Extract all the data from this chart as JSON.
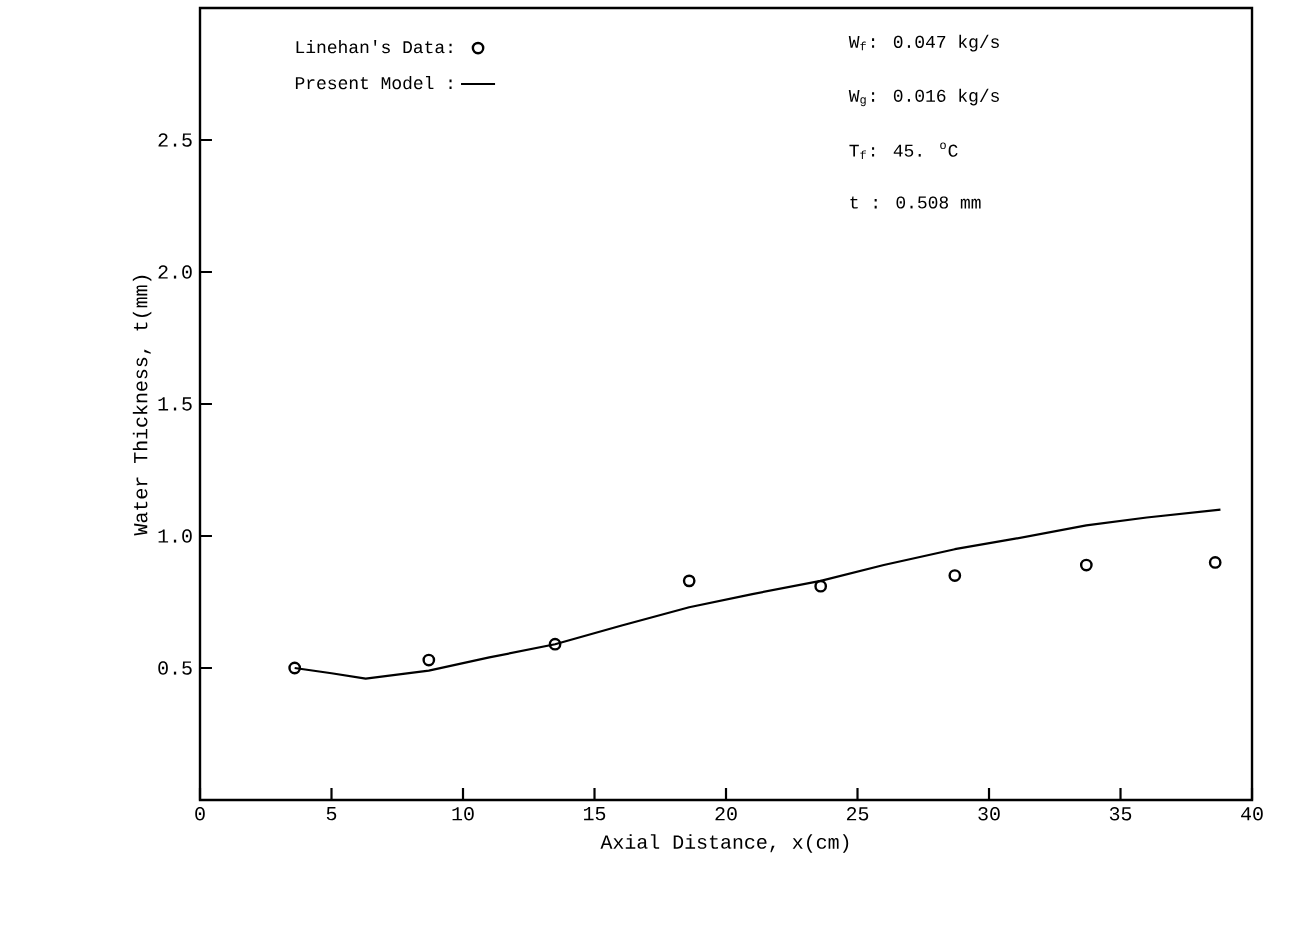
{
  "chart_data": {
    "type": "line",
    "xlabel": "Axial Distance, x(cm)",
    "ylabel": "Water Thickness, t(mm)",
    "xlim": [
      0,
      40
    ],
    "xticks": [
      0,
      5,
      10,
      15,
      20,
      25,
      30,
      35,
      40
    ],
    "ylim": [
      0,
      3
    ],
    "yticks": [
      0.5,
      {
        "value": 1,
        "label": "1.0"
      },
      1.5,
      {
        "value": 2,
        "label": "2.0"
      },
      2.5
    ],
    "legend": "top left",
    "grid": false,
    "series": [
      {
        "name": "Linehan's Data:",
        "type": "scatter",
        "marker": "circle",
        "color": "#000000",
        "x": [
          3.6,
          8.7,
          13.5,
          18.6,
          23.6,
          28.7,
          33.7,
          38.6
        ],
        "values": [
          0.5,
          0.53,
          0.59,
          0.83,
          0.81,
          0.85,
          0.89,
          0.9
        ]
      },
      {
        "name": "Present Model :",
        "line_style": "solid",
        "color": "#000000",
        "x": [
          3.6,
          5.0,
          6.3,
          8.7,
          11.0,
          13.5,
          16.0,
          18.6,
          21.0,
          23.6,
          26.0,
          28.7,
          31.0,
          33.7,
          36.0,
          38.8
        ],
        "values": [
          0.5,
          0.48,
          0.46,
          0.49,
          0.54,
          0.59,
          0.66,
          0.73,
          0.78,
          0.83,
          0.89,
          0.95,
          0.99,
          1.04,
          1.07,
          1.1
        ]
      }
    ],
    "annotations": [
      "W$_{f}$: 0.047 kg/s",
      "W$_{g}$: 0.016 kg/s",
      "T$_{f}$: 45.   $^{o}$C",
      "t : 0.508 mm"
    ]
  }
}
